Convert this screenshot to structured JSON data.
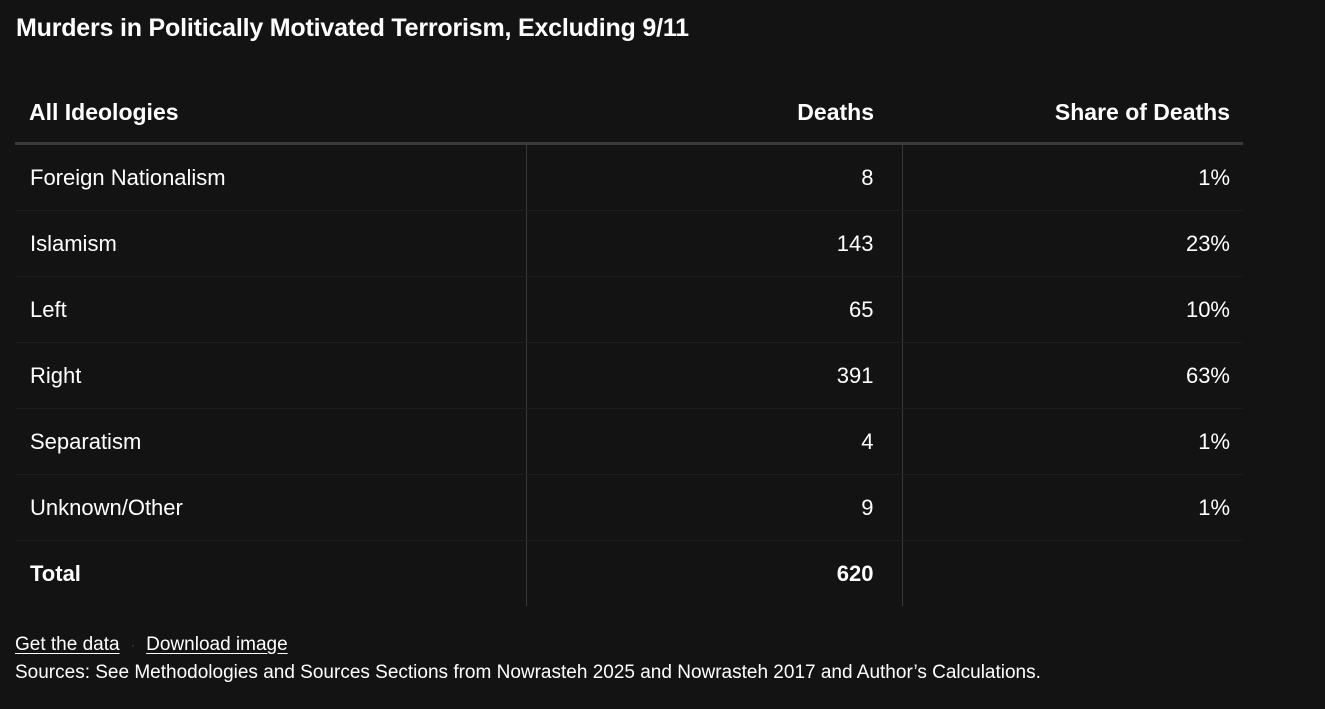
{
  "title": "Murders in Politically Motivated Terrorism, Excluding 9/11",
  "chart_data": {
    "type": "table",
    "title": "Murders in Politically Motivated Terrorism, Excluding 9/11",
    "columns": [
      "All Ideologies",
      "Deaths",
      "Share of Deaths"
    ],
    "rows": [
      {
        "ideology": "Foreign Nationalism",
        "deaths": "8",
        "share": "1%"
      },
      {
        "ideology": "Islamism",
        "deaths": "143",
        "share": "23%"
      },
      {
        "ideology": "Left",
        "deaths": "65",
        "share": "10%"
      },
      {
        "ideology": "Right",
        "deaths": "391",
        "share": "63%"
      },
      {
        "ideology": "Separatism",
        "deaths": "4",
        "share": "1%"
      },
      {
        "ideology": "Unknown/Other",
        "deaths": "9",
        "share": "1%"
      }
    ],
    "total": {
      "label": "Total",
      "deaths": "620",
      "share": ""
    }
  },
  "footer": {
    "get_data_label": "Get the data",
    "download_label": "Download image",
    "separator": "·",
    "sources": "Sources: See Methodologies and Sources Sections from Nowrasteh 2025 and Nowrasteh 2017 and Author’s Calculations."
  }
}
